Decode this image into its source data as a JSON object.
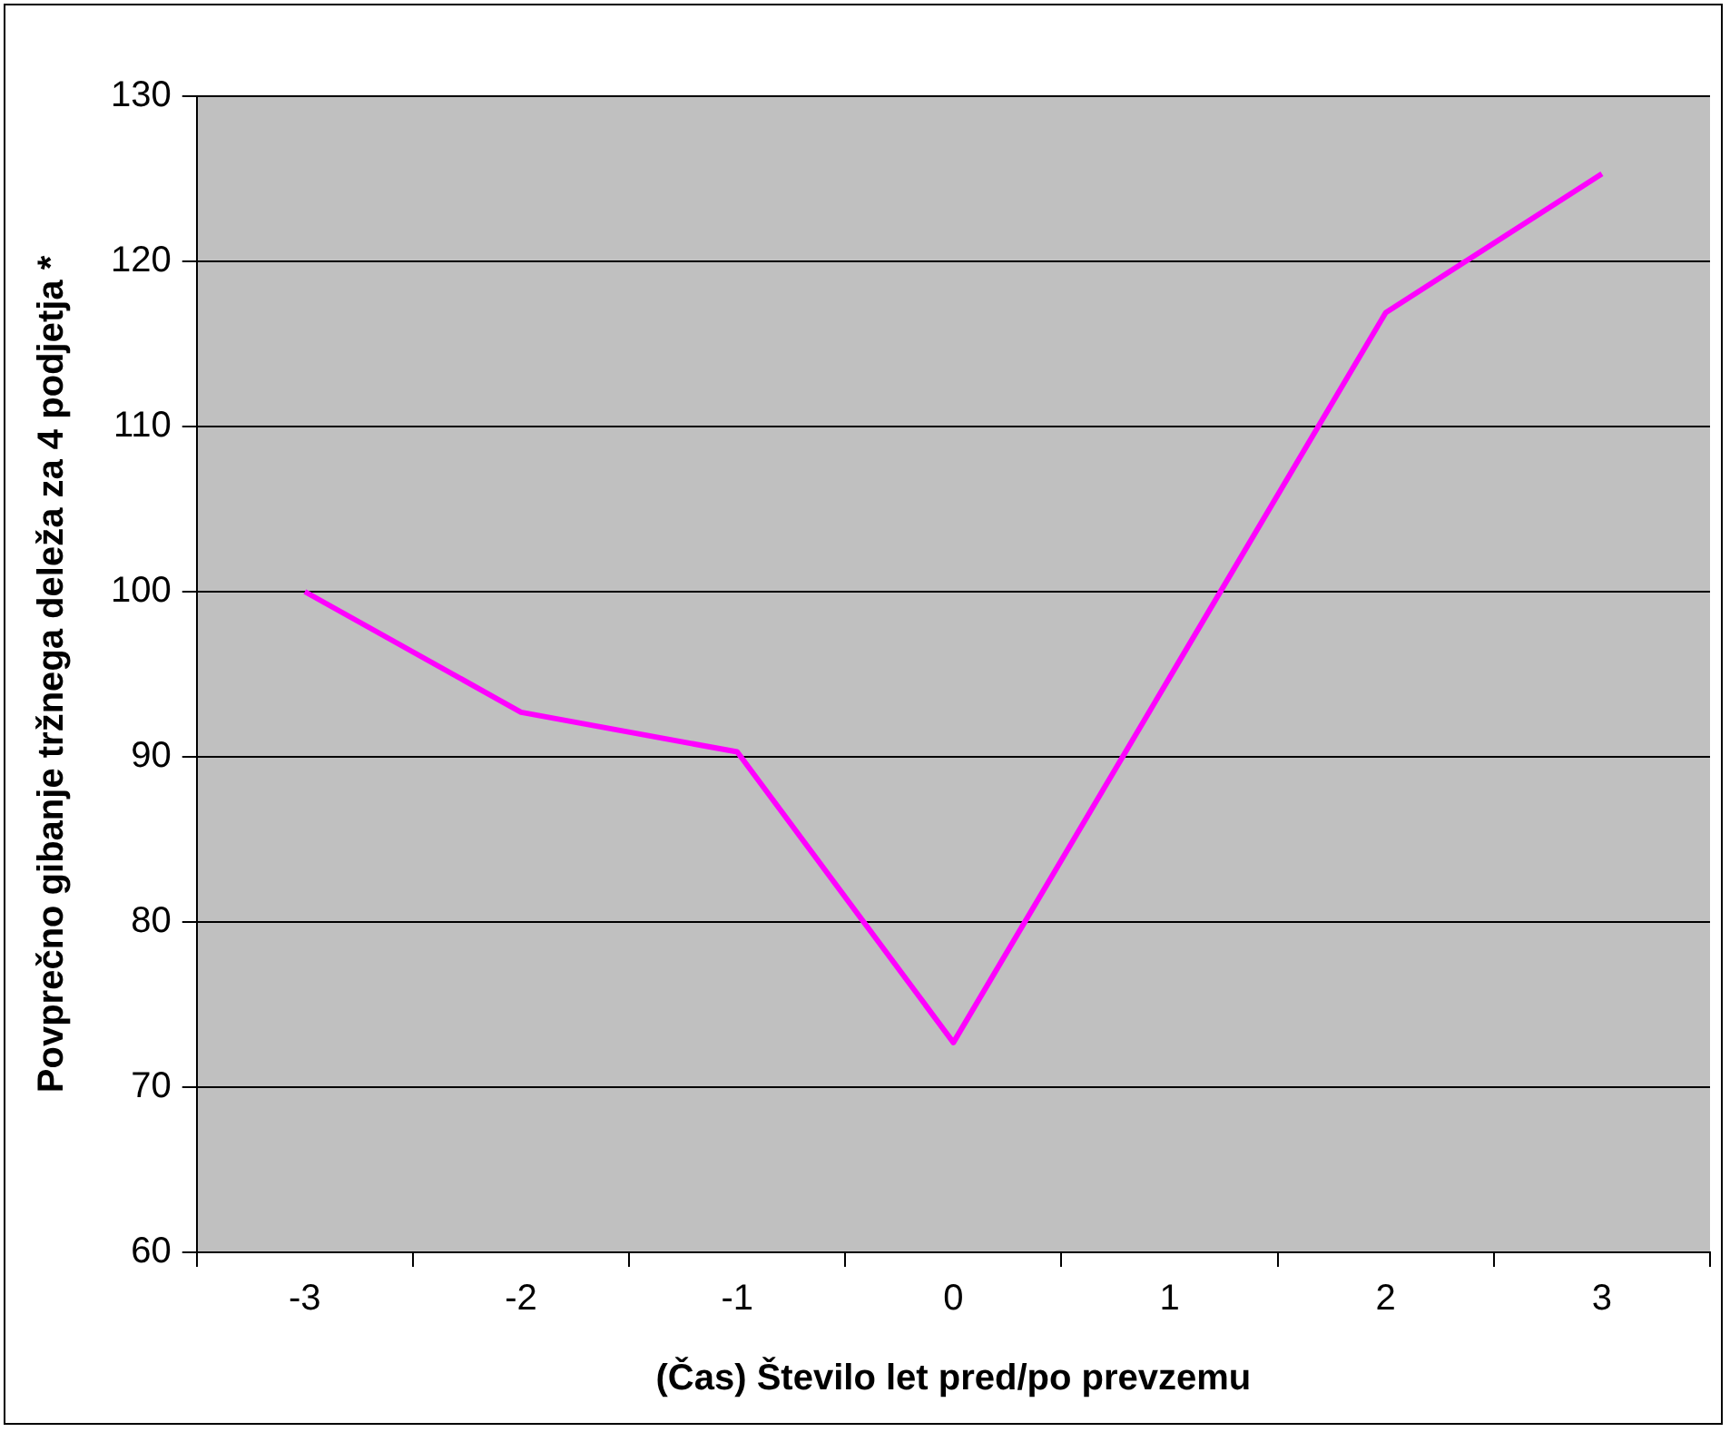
{
  "chart_data": {
    "type": "line",
    "xlabel": "(Čas) Število let pred/po prevzemu",
    "ylabel": "Povprečno gibanje tržnega deleža za 4 podjetja *",
    "categories": [
      "-3",
      "-2",
      "-1",
      "0",
      "1",
      "2",
      "3"
    ],
    "series": [
      {
        "color": "#ff00ff",
        "values": [
          100,
          92.7,
          90.3,
          72.7,
          94.8,
          116.9,
          125.3
        ]
      }
    ],
    "ylim": [
      60,
      130
    ],
    "yticks": [
      60,
      70,
      80,
      90,
      100,
      110,
      120,
      130
    ],
    "grid": "y",
    "legend": false,
    "marker": "none",
    "line_style": "solid"
  }
}
